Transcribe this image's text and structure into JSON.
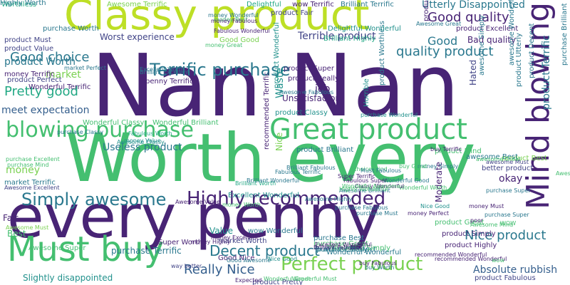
{
  "palette": {
    "dark_purple": "#482475",
    "indigo": "#414487",
    "blue": "#355f8d",
    "teal_blue": "#2a788e",
    "teal": "#21918c",
    "green_teal": "#22a884",
    "green": "#44bf70",
    "light_green": "#7ad151",
    "yellow_green": "#bddf26"
  },
  "word_cloud": {
    "words": [
      {
        "text": "Nan Nan",
        "color": "dark_purple"
      },
      {
        "text": "Worth every",
        "color": "green"
      },
      {
        "text": "every penny",
        "color": "dark_purple"
      },
      {
        "text": "Classy product",
        "color": "yellow_green"
      },
      {
        "text": "Mind blowing",
        "color": "dark_purple"
      },
      {
        "text": "Great product",
        "color": "green"
      },
      {
        "text": "Must buy",
        "color": "green"
      },
      {
        "text": "Highly recommended",
        "color": "dark_purple"
      },
      {
        "text": "blowing purchase",
        "color": "green"
      },
      {
        "text": "Simply awesome",
        "color": "teal_blue"
      },
      {
        "text": "Terrific purchase",
        "color": "teal_blue"
      },
      {
        "text": "Perfect product",
        "color": "light_green"
      },
      {
        "text": "Nice product",
        "color": "teal_blue"
      },
      {
        "text": "Decent product",
        "color": "teal_blue"
      },
      {
        "text": "Really Nice",
        "color": "blue"
      },
      {
        "text": "quality product",
        "color": "teal_blue"
      },
      {
        "text": "Good quality",
        "color": "dark_purple"
      },
      {
        "text": "Good choice",
        "color": "teal_blue"
      },
      {
        "text": "Pretty good",
        "color": "green_teal"
      },
      {
        "text": "Utterly Disappointed",
        "color": "teal_blue"
      },
      {
        "text": "Absolute rubbish",
        "color": "blue"
      },
      {
        "text": "product Worth",
        "color": "teal_blue"
      },
      {
        "text": "Useless product",
        "color": "teal_blue"
      },
      {
        "text": "meet expectation",
        "color": "blue"
      },
      {
        "text": "Worst experience",
        "color": "indigo"
      },
      {
        "text": "Terrible product",
        "color": "indigo"
      },
      {
        "text": "Slightly disappointed",
        "color": "teal"
      },
      {
        "text": "Waste",
        "color": "teal"
      },
      {
        "text": "job",
        "color": "dark_purple"
      },
      {
        "text": "Good",
        "color": "teal_blue"
      },
      {
        "text": "money",
        "color": "light_green"
      },
      {
        "text": "market",
        "color": "light_green"
      },
      {
        "text": "okay",
        "color": "dark_purple"
      },
      {
        "text": "Value",
        "color": "teal"
      },
      {
        "text": "Best",
        "color": "green"
      },
      {
        "text": "Fair",
        "color": "dark_purple"
      },
      {
        "text": "Nice",
        "color": "light_green"
      },
      {
        "text": "Bad quality",
        "color": "dark_purple"
      },
      {
        "text": "product Excellent",
        "color": "dark_purple"
      },
      {
        "text": "purchase Brilliant",
        "color": "teal_blue"
      },
      {
        "text": "Unsatisfactory",
        "color": "dark_purple"
      },
      {
        "text": "product Terrific",
        "color": "teal_blue"
      },
      {
        "text": "product Wonderful",
        "color": "teal"
      },
      {
        "text": "purchase Terrific",
        "color": "teal_blue"
      },
      {
        "text": "product Highly",
        "color": "dark_purple"
      },
      {
        "text": "product Simply",
        "color": "dark_purple"
      },
      {
        "text": "product Great",
        "color": "green"
      },
      {
        "text": "product Classy",
        "color": "teal"
      },
      {
        "text": "product Brilliant",
        "color": "teal_blue"
      },
      {
        "text": "product Best",
        "color": "light_green"
      },
      {
        "text": "better product",
        "color": "indigo"
      },
      {
        "text": "Moderate",
        "color": "dark_purple"
      },
      {
        "text": "Hated",
        "color": "indigo"
      },
      {
        "text": "Horrible",
        "color": "teal"
      },
      {
        "text": "recommended Terrific",
        "color": "dark_purple"
      },
      {
        "text": "product Super",
        "color": "dark_purple"
      },
      {
        "text": "product Really",
        "color": "dark_purple"
      },
      {
        "text": "Worthless",
        "color": "green_teal"
      },
      {
        "text": "Awesome Terrific",
        "color": "light_green"
      },
      {
        "text": "product Wonderful",
        "color": "dark_purple"
      },
      {
        "text": "Delightful",
        "color": "green_teal"
      },
      {
        "text": "wow Terrific",
        "color": "dark_purple"
      },
      {
        "text": "Brilliant Terrific",
        "color": "teal_blue"
      },
      {
        "text": "product Must",
        "color": "indigo"
      },
      {
        "text": "product Value",
        "color": "indigo"
      },
      {
        "text": "money Terrific",
        "color": "dark_purple"
      },
      {
        "text": "product Perfect",
        "color": "indigo"
      },
      {
        "text": "Wonderful Terrific",
        "color": "dark_purple"
      },
      {
        "text": "Wonderful Classy",
        "color": "green"
      },
      {
        "text": "Wonderful Brilliant",
        "color": "green"
      },
      {
        "text": "Awesome Classy",
        "color": "teal"
      },
      {
        "text": "Awesome Fabulous",
        "color": "teal_blue"
      },
      {
        "text": "Awesome Excellent",
        "color": "indigo"
      },
      {
        "text": "Awesome Super",
        "color": "green"
      },
      {
        "text": "Awesome Must",
        "color": "light_green"
      },
      {
        "text": "awesome Wonderful",
        "color": "teal_blue"
      },
      {
        "text": "awesome Simply",
        "color": "teal_blue"
      },
      {
        "text": "awesome Best",
        "color": "teal_blue"
      },
      {
        "text": "awesome Great",
        "color": "green"
      },
      {
        "text": "awesome Must",
        "color": "indigo"
      },
      {
        "text": "purchase Classy",
        "color": "teal_blue"
      },
      {
        "text": "purchase Excellent",
        "color": "green"
      },
      {
        "text": "purchase Mind",
        "color": "green"
      },
      {
        "text": "purchase Super",
        "color": "teal_blue"
      },
      {
        "text": "purchase Wonderful",
        "color": "teal"
      },
      {
        "text": "purchase Best",
        "color": "teal_blue"
      },
      {
        "text": "purchase Great",
        "color": "green"
      },
      {
        "text": "purchase Perfect",
        "color": "teal_blue"
      },
      {
        "text": "purchase Fabulous",
        "color": "teal_blue"
      },
      {
        "text": "purchase Must",
        "color": "teal_blue"
      },
      {
        "text": "purchase Worth",
        "color": "teal_blue"
      },
      {
        "text": "product Worthless",
        "color": "teal_blue"
      },
      {
        "text": "product Fabulous",
        "color": "indigo"
      },
      {
        "text": "product Fair",
        "color": "indigo"
      },
      {
        "text": "product Pretty",
        "color": "indigo"
      },
      {
        "text": "product Mind",
        "color": "green"
      },
      {
        "text": "product Decent",
        "color": "teal_blue"
      },
      {
        "text": "product Utterly",
        "color": "teal_blue"
      },
      {
        "text": "market Terrific",
        "color": "teal_blue"
      },
      {
        "text": "market Worth",
        "color": "indigo"
      },
      {
        "text": "market Perfect",
        "color": "teal_blue"
      },
      {
        "text": "money Worth",
        "color": "green"
      },
      {
        "text": "money Wonderful",
        "color": "teal_blue"
      },
      {
        "text": "money Great",
        "color": "green"
      },
      {
        "text": "money Best",
        "color": "green"
      },
      {
        "text": "money Must",
        "color": "dark_purple"
      },
      {
        "text": "money Excellent",
        "color": "dark_purple"
      },
      {
        "text": "money Highly",
        "color": "dark_purple"
      },
      {
        "text": "money Fabulous",
        "color": "dark_purple"
      },
      {
        "text": "money Simply",
        "color": "teal_blue"
      },
      {
        "text": "money Perfect",
        "color": "dark_purple"
      },
      {
        "text": "money Value",
        "color": "teal"
      },
      {
        "text": "Fabulous Worth",
        "color": "green_teal"
      },
      {
        "text": "Fabulous Terrific",
        "color": "teal_blue"
      },
      {
        "text": "Delightful Wonderful",
        "color": "teal"
      },
      {
        "text": "Brilliant Highly",
        "color": "green_teal"
      },
      {
        "text": "Brilliant Worth",
        "color": "green_teal"
      },
      {
        "text": "Brilliant Wonderful",
        "color": "teal_blue"
      },
      {
        "text": "Brilliant Fabulous",
        "color": "teal_blue"
      },
      {
        "text": "Brilliant Excellent",
        "color": "teal_blue"
      },
      {
        "text": "Excellent Worth",
        "color": "teal_blue"
      },
      {
        "text": "Excellent Wonderful",
        "color": "teal"
      },
      {
        "text": "Super Terrific",
        "color": "dark_purple"
      },
      {
        "text": "Super Worth",
        "color": "dark_purple"
      },
      {
        "text": "Good Nice",
        "color": "dark_purple"
      },
      {
        "text": "Good Good",
        "color": "light_green"
      },
      {
        "text": "Good Awesome",
        "color": "teal_blue"
      },
      {
        "text": "Nice Good",
        "color": "teal"
      },
      {
        "text": "Wonderful Good",
        "color": "teal_blue"
      },
      {
        "text": "Wonderful Worth",
        "color": "green"
      },
      {
        "text": "Wonderful Brilliant",
        "color": "dark_purple"
      },
      {
        "text": "Fabulous Wonderful",
        "color": "dark_purple"
      },
      {
        "text": "Awesome Value",
        "color": "dark_purple"
      },
      {
        "text": "Awesome Highly",
        "color": "teal_blue"
      },
      {
        "text": "Awesome Brilliant",
        "color": "teal_blue"
      },
      {
        "text": "Awesome Wonderful",
        "color": "green"
      },
      {
        "text": "Awesome Great",
        "color": "teal_blue"
      },
      {
        "text": "Awesome Mind",
        "color": "green"
      },
      {
        "text": "Wonderful Wonderful",
        "color": "teal_blue"
      },
      {
        "text": "Wonderful Simply",
        "color": "green"
      },
      {
        "text": "Wonderful Great",
        "color": "green"
      },
      {
        "text": "Wonderful Must",
        "color": "green"
      },
      {
        "text": "recommended Wonderful",
        "color": "dark_purple"
      },
      {
        "text": "recommended Wonderful",
        "color": "dark_purple"
      },
      {
        "text": "Excellent Wonderful",
        "color": "dark_purple"
      },
      {
        "text": "Brilliant Classy",
        "color": "teal_blue"
      },
      {
        "text": "Brilliant Fabulous",
        "color": "dark_purple"
      },
      {
        "text": "wow",
        "color": "green"
      },
      {
        "text": "wow Wonderful",
        "color": "teal_blue"
      },
      {
        "text": "WOW",
        "color": "green"
      },
      {
        "text": "Nice Good",
        "color": "teal"
      },
      {
        "text": "purchase Super",
        "color": "teal_blue"
      },
      {
        "text": "poor",
        "color": "dark_purple"
      },
      {
        "text": "Expected",
        "color": "dark_purple"
      },
      {
        "text": "way better",
        "color": "indigo"
      },
      {
        "text": "penny Terrific",
        "color": "dark_purple"
      },
      {
        "text": "buy Terrific",
        "color": "dark_purple"
      },
      {
        "text": "buy Great",
        "color": "green"
      },
      {
        "text": "buy Worth",
        "color": "teal_blue"
      },
      {
        "text": "buy Fabulous",
        "color": "dark_purple"
      },
      {
        "text": "Fabulous Super",
        "color": "dark_purple"
      },
      {
        "text": "Highly Wonderful",
        "color": "green"
      },
      {
        "text": "Classy Wonderful",
        "color": "dark_purple"
      },
      {
        "text": "Wonderful Awesome",
        "color": "green"
      },
      {
        "text": "choice Mind",
        "color": "green"
      },
      {
        "text": "Must Fabulous",
        "color": "teal_blue"
      },
      {
        "text": "Highly Worth",
        "color": "teal_blue"
      }
    ]
  }
}
